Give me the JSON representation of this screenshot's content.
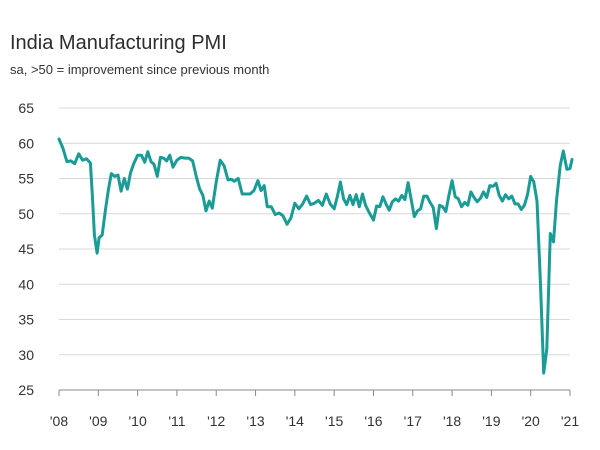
{
  "chart_data": {
    "type": "line",
    "title": "India Manufacturing PMI",
    "subtitle": "sa, >50 = improvement since previous month",
    "xlabel": "",
    "ylabel": "",
    "ylim": [
      25,
      65
    ],
    "yticks": [
      25,
      30,
      35,
      40,
      45,
      50,
      55,
      60,
      65
    ],
    "xlim": [
      2008,
      2021
    ],
    "xticks": [
      {
        "value": 2008,
        "label": "'08"
      },
      {
        "value": 2009,
        "label": "'09"
      },
      {
        "value": 2010,
        "label": "'10"
      },
      {
        "value": 2011,
        "label": "'11"
      },
      {
        "value": 2012,
        "label": "'12"
      },
      {
        "value": 2013,
        "label": "'13"
      },
      {
        "value": 2014,
        "label": "'14"
      },
      {
        "value": 2015,
        "label": "'15"
      },
      {
        "value": 2016,
        "label": "'16"
      },
      {
        "value": 2017,
        "label": "'17"
      },
      {
        "value": 2018,
        "label": "'18"
      },
      {
        "value": 2019,
        "label": "'19"
      },
      {
        "value": 2020,
        "label": "'20"
      },
      {
        "value": 2021,
        "label": "'21"
      }
    ],
    "grid": "horizontal",
    "line_color": "#1a9b95",
    "series": [
      {
        "name": "India Manufacturing PMI",
        "points": [
          [
            2008.0,
            60.6
          ],
          [
            2008.1,
            59.3
          ],
          [
            2008.2,
            57.4
          ],
          [
            2008.3,
            57.5
          ],
          [
            2008.4,
            57.1
          ],
          [
            2008.5,
            58.5
          ],
          [
            2008.6,
            57.6
          ],
          [
            2008.7,
            57.8
          ],
          [
            2008.8,
            57.2
          ],
          [
            2008.85,
            52.5
          ],
          [
            2008.9,
            47.0
          ],
          [
            2008.97,
            44.4
          ],
          [
            2009.02,
            46.6
          ],
          [
            2009.1,
            47.0
          ],
          [
            2009.18,
            50.5
          ],
          [
            2009.26,
            53.5
          ],
          [
            2009.33,
            55.7
          ],
          [
            2009.42,
            55.3
          ],
          [
            2009.5,
            55.5
          ],
          [
            2009.58,
            53.2
          ],
          [
            2009.66,
            55.0
          ],
          [
            2009.74,
            53.5
          ],
          [
            2009.82,
            55.8
          ],
          [
            2009.9,
            57.1
          ],
          [
            2010.0,
            58.3
          ],
          [
            2010.1,
            58.3
          ],
          [
            2010.18,
            57.3
          ],
          [
            2010.26,
            58.8
          ],
          [
            2010.34,
            57.4
          ],
          [
            2010.42,
            57.0
          ],
          [
            2010.5,
            55.3
          ],
          [
            2010.58,
            58.0
          ],
          [
            2010.66,
            57.9
          ],
          [
            2010.74,
            57.5
          ],
          [
            2010.82,
            58.3
          ],
          [
            2010.9,
            56.6
          ],
          [
            2011.0,
            57.6
          ],
          [
            2011.1,
            58.0
          ],
          [
            2011.2,
            57.9
          ],
          [
            2011.3,
            57.9
          ],
          [
            2011.4,
            57.5
          ],
          [
            2011.5,
            55.1
          ],
          [
            2011.58,
            53.5
          ],
          [
            2011.66,
            52.6
          ],
          [
            2011.74,
            50.4
          ],
          [
            2011.82,
            51.8
          ],
          [
            2011.9,
            50.8
          ],
          [
            2012.0,
            54.5
          ],
          [
            2012.1,
            57.6
          ],
          [
            2012.2,
            56.8
          ],
          [
            2012.3,
            54.8
          ],
          [
            2012.38,
            54.9
          ],
          [
            2012.46,
            54.6
          ],
          [
            2012.56,
            55.0
          ],
          [
            2012.66,
            52.8
          ],
          [
            2012.76,
            52.8
          ],
          [
            2012.86,
            52.8
          ],
          [
            2012.96,
            53.3
          ],
          [
            2013.06,
            54.7
          ],
          [
            2013.14,
            53.3
          ],
          [
            2013.22,
            54.0
          ],
          [
            2013.3,
            51.0
          ],
          [
            2013.4,
            51.0
          ],
          [
            2013.5,
            49.9
          ],
          [
            2013.6,
            50.1
          ],
          [
            2013.7,
            49.7
          ],
          [
            2013.8,
            48.5
          ],
          [
            2013.9,
            49.4
          ],
          [
            2014.0,
            51.5
          ],
          [
            2014.1,
            50.7
          ],
          [
            2014.2,
            51.4
          ],
          [
            2014.3,
            52.5
          ],
          [
            2014.4,
            51.3
          ],
          [
            2014.5,
            51.5
          ],
          [
            2014.6,
            51.9
          ],
          [
            2014.7,
            51.2
          ],
          [
            2014.8,
            52.8
          ],
          [
            2014.9,
            51.4
          ],
          [
            2015.0,
            50.7
          ],
          [
            2015.08,
            52.4
          ],
          [
            2015.16,
            54.5
          ],
          [
            2015.24,
            52.1
          ],
          [
            2015.32,
            51.3
          ],
          [
            2015.4,
            52.6
          ],
          [
            2015.48,
            51.3
          ],
          [
            2015.56,
            52.7
          ],
          [
            2015.64,
            51.0
          ],
          [
            2015.72,
            52.8
          ],
          [
            2015.8,
            51.2
          ],
          [
            2015.88,
            50.3
          ],
          [
            2016.0,
            49.1
          ],
          [
            2016.08,
            51.1
          ],
          [
            2016.16,
            51.0
          ],
          [
            2016.24,
            52.4
          ],
          [
            2016.32,
            51.4
          ],
          [
            2016.4,
            50.5
          ],
          [
            2016.48,
            51.7
          ],
          [
            2016.56,
            52.1
          ],
          [
            2016.64,
            51.8
          ],
          [
            2016.72,
            52.6
          ],
          [
            2016.8,
            52.0
          ],
          [
            2016.88,
            54.4
          ],
          [
            2016.96,
            52.0
          ],
          [
            2017.04,
            49.6
          ],
          [
            2017.12,
            50.4
          ],
          [
            2017.2,
            50.7
          ],
          [
            2017.28,
            52.5
          ],
          [
            2017.36,
            52.5
          ],
          [
            2017.44,
            51.6
          ],
          [
            2017.52,
            50.9
          ],
          [
            2017.6,
            47.9
          ],
          [
            2017.68,
            51.2
          ],
          [
            2017.76,
            51.0
          ],
          [
            2017.84,
            50.3
          ],
          [
            2017.92,
            52.6
          ],
          [
            2018.0,
            54.7
          ],
          [
            2018.08,
            52.4
          ],
          [
            2018.16,
            52.1
          ],
          [
            2018.24,
            51.0
          ],
          [
            2018.32,
            51.6
          ],
          [
            2018.4,
            51.2
          ],
          [
            2018.48,
            53.1
          ],
          [
            2018.56,
            52.3
          ],
          [
            2018.64,
            51.7
          ],
          [
            2018.72,
            52.2
          ],
          [
            2018.8,
            53.1
          ],
          [
            2018.88,
            52.3
          ],
          [
            2018.96,
            54.0
          ],
          [
            2019.04,
            53.9
          ],
          [
            2019.12,
            54.3
          ],
          [
            2019.2,
            52.6
          ],
          [
            2019.28,
            51.8
          ],
          [
            2019.36,
            52.7
          ],
          [
            2019.44,
            52.1
          ],
          [
            2019.52,
            52.5
          ],
          [
            2019.6,
            51.4
          ],
          [
            2019.68,
            51.4
          ],
          [
            2019.76,
            50.6
          ],
          [
            2019.84,
            51.2
          ],
          [
            2019.92,
            52.7
          ],
          [
            2020.0,
            55.3
          ],
          [
            2020.08,
            54.5
          ],
          [
            2020.16,
            51.8
          ],
          [
            2020.25,
            40.0
          ],
          [
            2020.33,
            27.4
          ],
          [
            2020.41,
            30.8
          ],
          [
            2020.5,
            47.2
          ],
          [
            2020.58,
            46.0
          ],
          [
            2020.66,
            52.0
          ],
          [
            2020.75,
            56.8
          ],
          [
            2020.83,
            58.9
          ],
          [
            2020.92,
            56.3
          ],
          [
            2021.0,
            56.4
          ],
          [
            2021.05,
            57.7
          ]
        ]
      }
    ]
  }
}
